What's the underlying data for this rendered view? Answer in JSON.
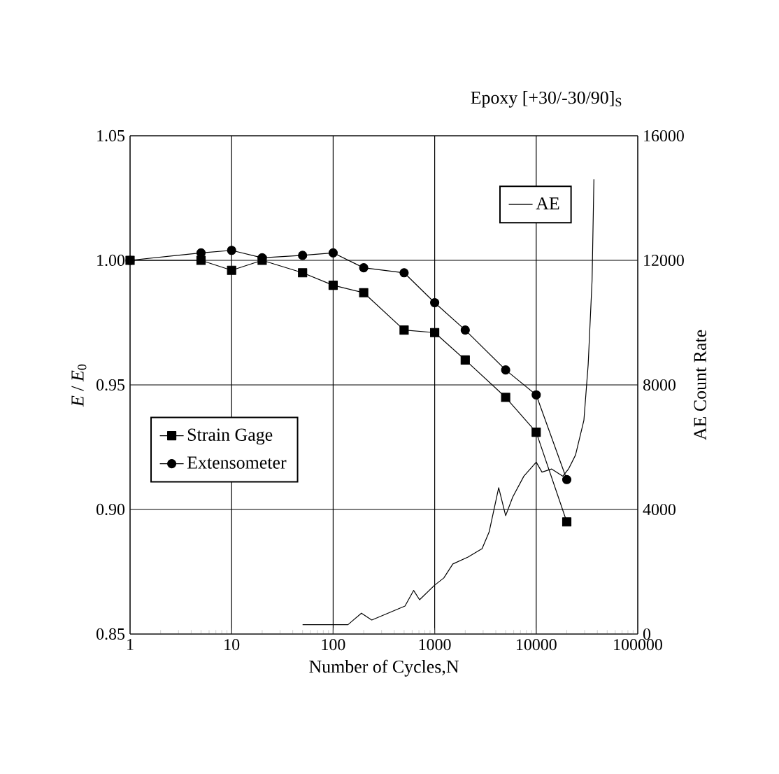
{
  "chart_data": {
    "type": "line",
    "title": "Epoxy [+30/-30/90]$_{S}$",
    "xlabel": "Number of Cycles,N",
    "ylabel": "*E* / *E*$_{0}$",
    "y2label": "AE Count Rate",
    "log": "x",
    "grid": true,
    "legend": "left",
    "line_style": "solid",
    "xlim": [
      1,
      100000
    ],
    "xticks": [
      1,
      10,
      100,
      1000,
      10000,
      100000
    ],
    "ylim": [
      0.85,
      1.05
    ],
    "yticks": [
      0.85,
      {
        "value": 0.9,
        "label": "0.90"
      },
      0.95,
      {
        "value": 1.0,
        "label": "1.00"
      },
      1.05
    ],
    "y2lim": [
      0,
      16000
    ],
    "y2ticks": [
      0,
      4000,
      8000,
      12000,
      16000
    ],
    "series": [
      {
        "name": "Strain Gage",
        "color": "#000000",
        "marker": "square",
        "x": [
          1,
          5,
          10,
          20,
          50,
          100,
          200,
          500,
          1000,
          2000,
          5000,
          10000,
          20000
        ],
        "values": [
          1.0,
          1.0,
          0.996,
          1.0,
          0.995,
          0.99,
          0.987,
          0.972,
          0.971,
          0.96,
          0.945,
          0.931,
          0.895
        ]
      },
      {
        "name": "Extensometer",
        "color": "#000000",
        "marker": "circle",
        "x": [
          1,
          5,
          10,
          20,
          50,
          100,
          200,
          500,
          1000,
          2000,
          5000,
          10000,
          20000
        ],
        "values": [
          1.0,
          1.003,
          1.004,
          1.001,
          1.002,
          1.003,
          0.997,
          0.995,
          0.983,
          0.972,
          0.956,
          0.946,
          0.912
        ]
      },
      {
        "name": "AE",
        "color": "#000000",
        "marker": "none",
        "axis": "y2",
        "x": [
          50,
          100,
          140,
          190,
          240,
          510,
          620,
          710,
          1000,
          1230,
          1510,
          2130,
          2930,
          3440,
          4270,
          5000,
          5870,
          7560,
          10000,
          11400,
          14200,
          18300,
          20800,
          24400,
          29500,
          32500,
          35500,
          37000
        ],
        "values": [
          300,
          300,
          300,
          670,
          450,
          900,
          1400,
          1100,
          1570,
          1800,
          2250,
          2470,
          2740,
          3280,
          4700,
          3800,
          4400,
          5070,
          5520,
          5200,
          5300,
          5070,
          5300,
          5750,
          6870,
          8660,
          11360,
          14600
        ]
      }
    ]
  }
}
